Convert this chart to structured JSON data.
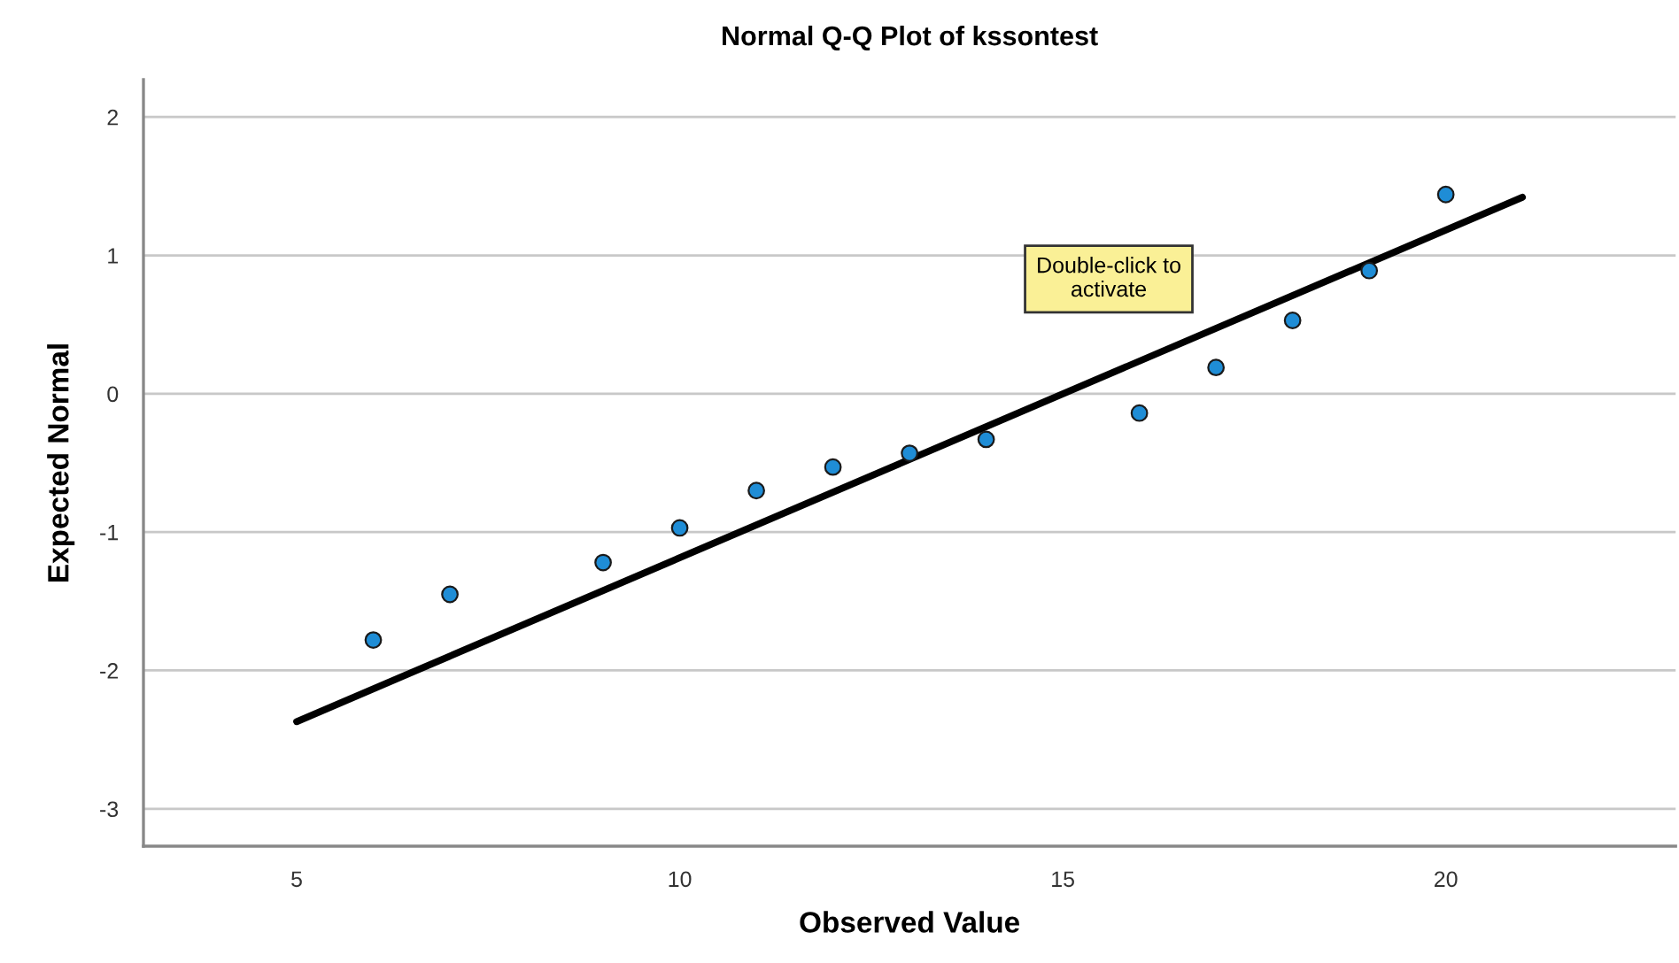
{
  "chart_data": {
    "type": "scatter",
    "title": "Normal Q-Q Plot of kssontest",
    "xlabel": "Observed Value",
    "ylabel": "Expected Normal",
    "series": [
      {
        "marker": "circle",
        "color": "#1f8dd6",
        "x": [
          6,
          7,
          9,
          10,
          11,
          12,
          13,
          14,
          16,
          17,
          18,
          19,
          20
        ],
        "values": [
          -1.78,
          -1.45,
          -1.22,
          -0.97,
          -0.7,
          -0.53,
          -0.43,
          -0.33,
          -0.14,
          0.19,
          0.53,
          0.89,
          1.44
        ]
      },
      {
        "type": "line",
        "marker": "none",
        "color": "#000000",
        "x": [
          5,
          21
        ],
        "values": [
          -2.37,
          1.42
        ]
      }
    ],
    "annotations": [
      "Double-click to\nactivate"
    ],
    "xlim": [
      3,
      23
    ],
    "ylim": [
      -3.27,
      2.27
    ],
    "xticks": [
      5,
      10,
      15,
      20
    ],
    "yticks": [
      -3,
      -2,
      -1,
      0,
      1,
      2
    ],
    "grid": "y"
  }
}
